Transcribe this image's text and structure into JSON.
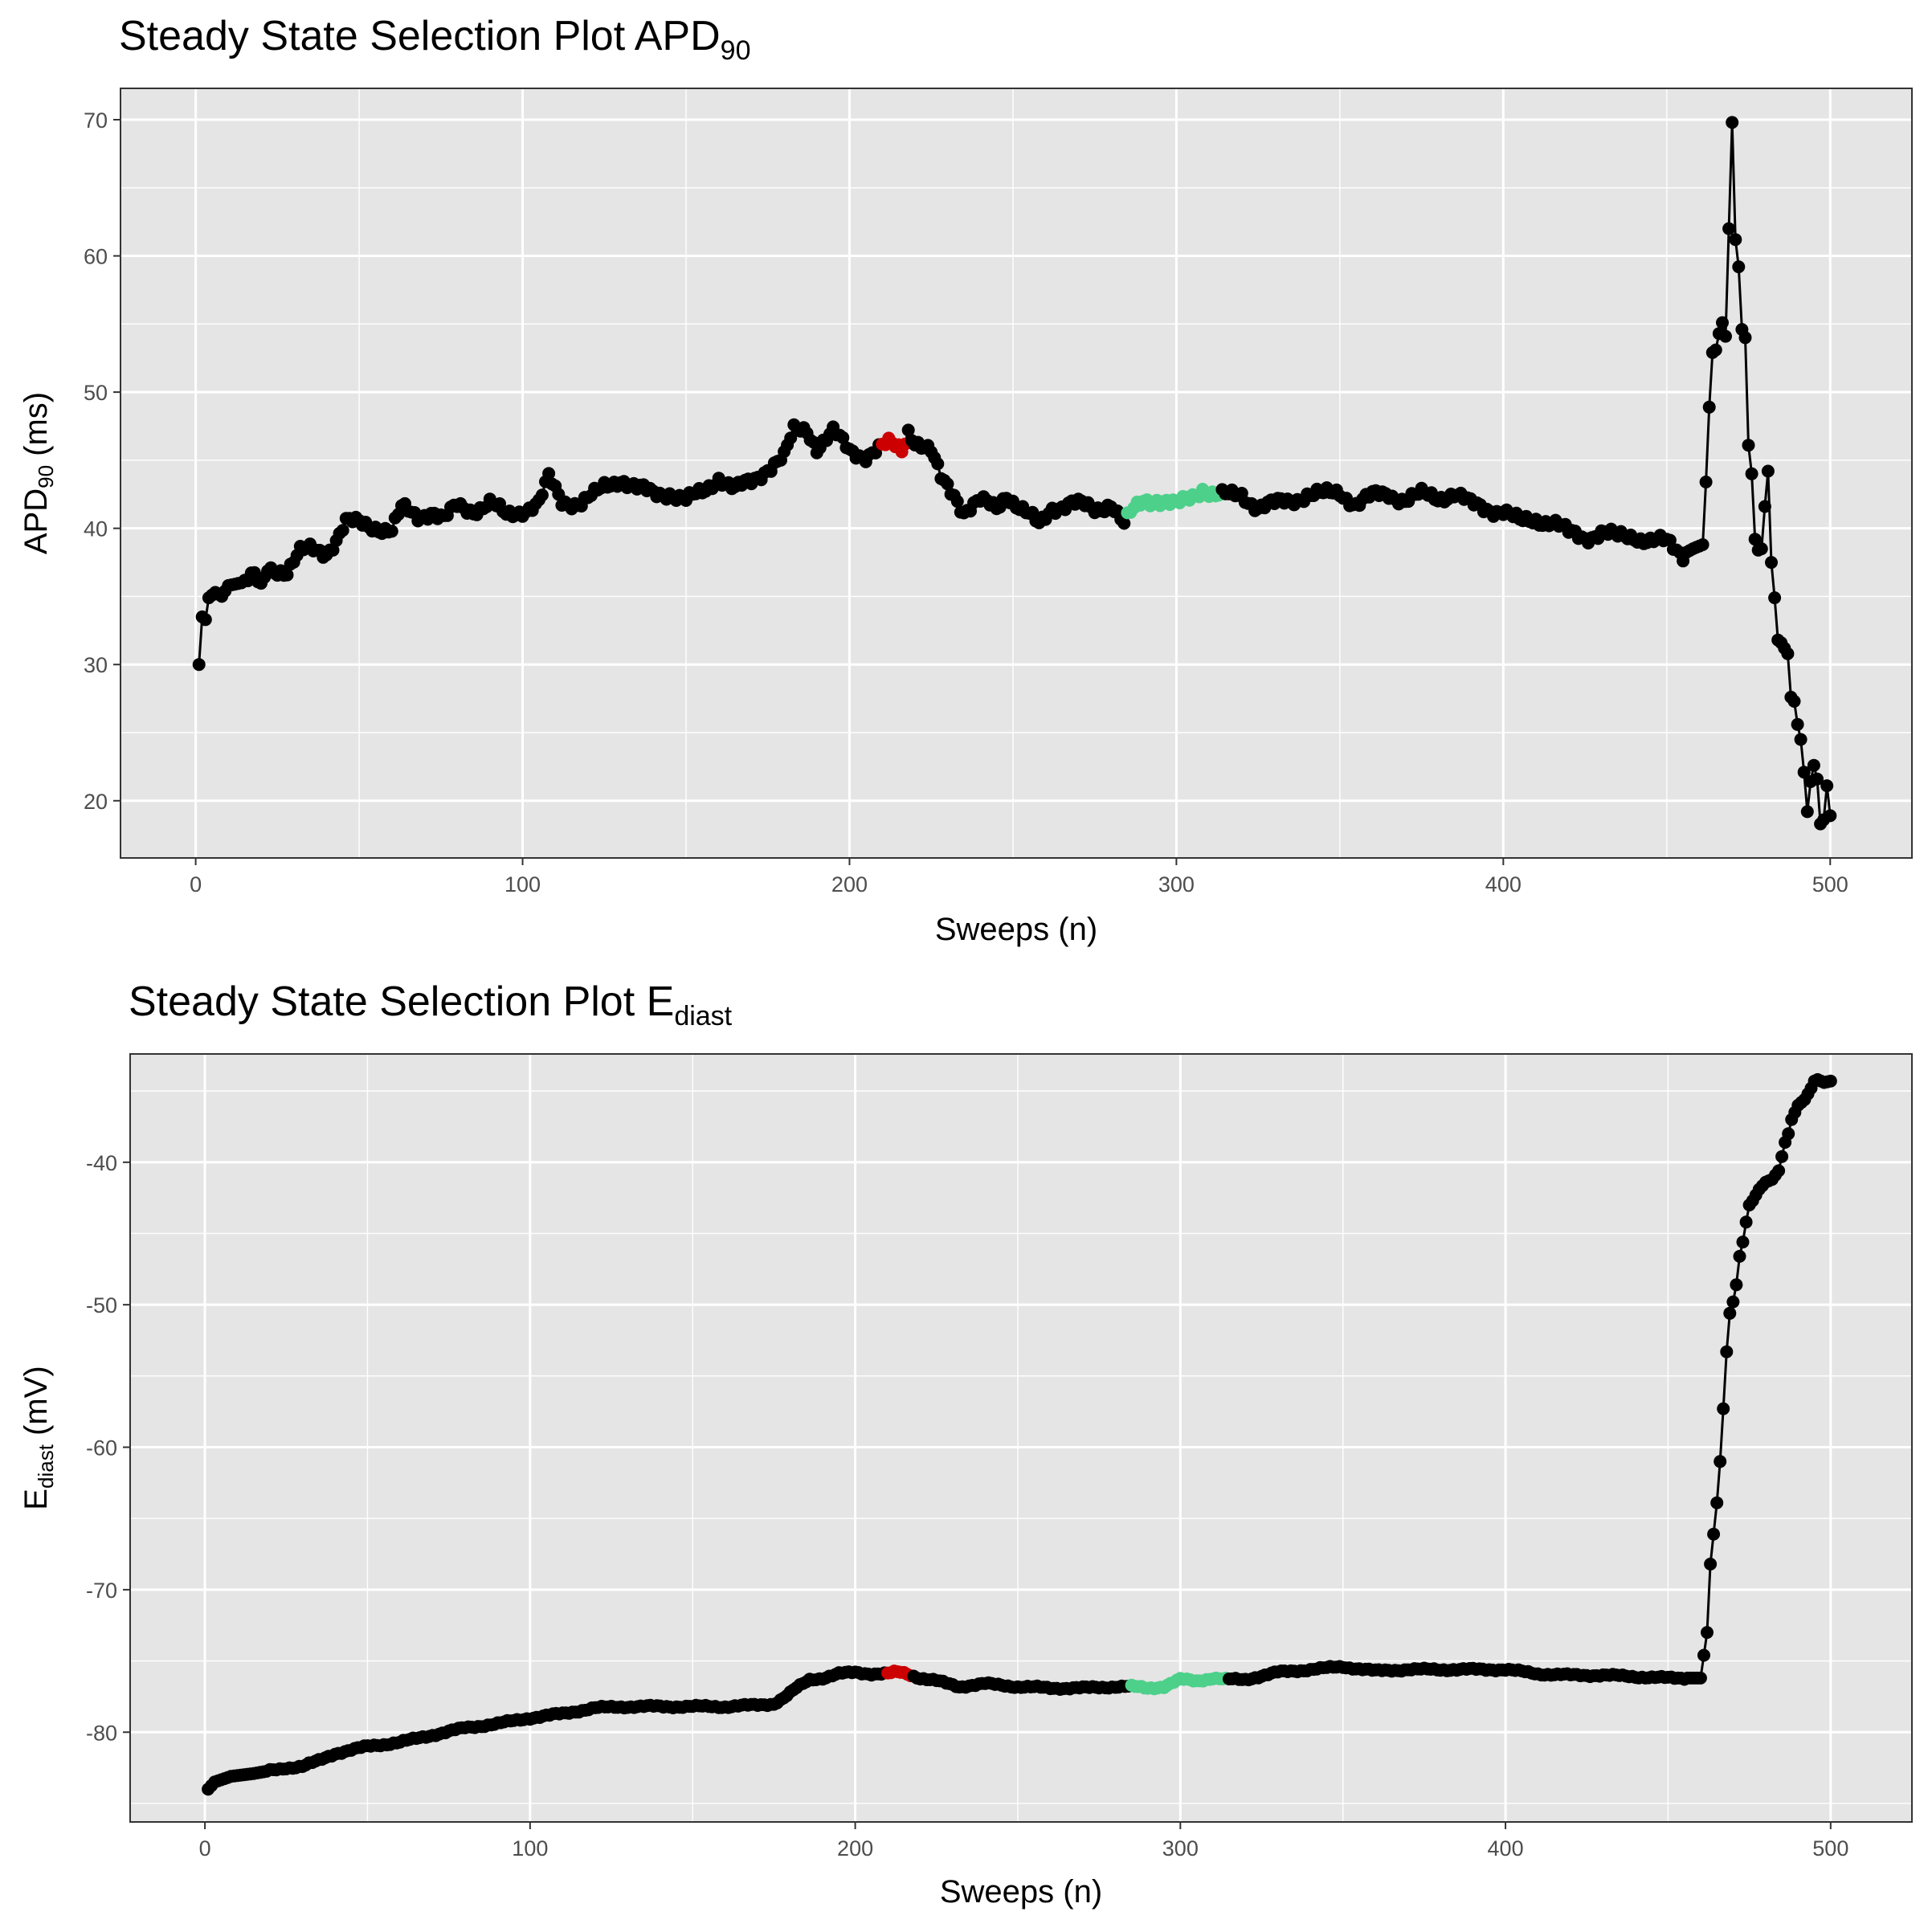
{
  "colors": {
    "panel_background": "#e5e5e5",
    "line": "#000000",
    "point": "#000000",
    "highlight_red": "#cc0000",
    "highlight_green": "#4dd08a",
    "tick_text": "#4d4d4d"
  },
  "chart_data": [
    {
      "type": "line",
      "markers": true,
      "title": "Steady State Selection Plot APD",
      "title_subscript": "90",
      "xlabel": "Sweeps (n)",
      "ylabel": "APD",
      "ylabel_subscript": "90",
      "ylabel_suffix": " (ms)",
      "xlim": [
        -23,
        525
      ],
      "ylim": [
        15.8,
        72.3
      ],
      "xticks": [
        0,
        100,
        200,
        300,
        400,
        500
      ],
      "yticks": [
        20,
        30,
        40,
        50,
        60,
        70
      ],
      "grid": true,
      "legend": "none",
      "x_range": [
        1,
        500
      ],
      "anchors": [
        [
          1,
          30
        ],
        [
          2,
          33.5
        ],
        [
          3,
          33.3
        ],
        [
          4,
          34.9
        ],
        [
          6,
          35.3
        ],
        [
          8,
          35
        ],
        [
          10,
          35.8
        ],
        [
          14,
          36
        ],
        [
          18,
          36.4
        ],
        [
          20,
          35.5
        ],
        [
          22,
          37
        ],
        [
          26,
          37
        ],
        [
          28,
          36.9
        ],
        [
          30,
          37.6
        ],
        [
          32,
          38.2
        ],
        [
          35,
          38.4
        ],
        [
          40,
          38.3
        ],
        [
          43,
          39.2
        ],
        [
          46,
          40.4
        ],
        [
          55,
          40.2
        ],
        [
          60,
          39.8
        ],
        [
          63,
          41.4
        ],
        [
          68,
          40.9
        ],
        [
          72,
          41.3
        ],
        [
          76,
          40.6
        ],
        [
          80,
          41.6
        ],
        [
          85,
          41.4
        ],
        [
          90,
          41.8
        ],
        [
          95,
          40.9
        ],
        [
          100,
          41.4
        ],
        [
          105,
          41.8
        ],
        [
          108,
          43.6
        ],
        [
          112,
          42
        ],
        [
          118,
          41.9
        ],
        [
          122,
          42.4
        ],
        [
          125,
          43
        ],
        [
          130,
          43.7
        ],
        [
          135,
          42.9
        ],
        [
          140,
          42.5
        ],
        [
          145,
          42.7
        ],
        [
          150,
          42
        ],
        [
          155,
          42.6
        ],
        [
          160,
          43.8
        ],
        [
          165,
          42.8
        ],
        [
          170,
          43.4
        ],
        [
          175,
          44.5
        ],
        [
          180,
          45.2
        ],
        [
          183,
          47.1
        ],
        [
          187,
          47.3
        ],
        [
          190,
          46
        ],
        [
          195,
          47
        ],
        [
          200,
          45.7
        ],
        [
          205,
          45.4
        ],
        [
          210,
          45.9
        ],
        [
          212,
          46.1
        ],
        [
          214,
          46
        ],
        [
          216,
          45.8
        ],
        [
          218,
          47.3
        ],
        [
          220,
          46.5
        ],
        [
          225,
          45.5
        ],
        [
          228,
          43.6
        ],
        [
          232,
          42.6
        ],
        [
          235,
          41.3
        ],
        [
          240,
          41.9
        ],
        [
          245,
          41.5
        ],
        [
          248,
          42.6
        ],
        [
          252,
          41.5
        ],
        [
          258,
          40.2
        ],
        [
          262,
          41.6
        ],
        [
          268,
          41.8
        ],
        [
          275,
          41.4
        ],
        [
          280,
          41.9
        ],
        [
          284,
          40.2
        ],
        [
          286,
          41
        ],
        [
          290,
          42.1
        ],
        [
          294,
          42.2
        ],
        [
          297,
          41.9
        ],
        [
          300,
          41.6
        ],
        [
          305,
          42.4
        ],
        [
          308,
          43
        ],
        [
          312,
          42.4
        ],
        [
          316,
          42.3
        ],
        [
          320,
          42.5
        ],
        [
          325,
          41.6
        ],
        [
          330,
          41.7
        ],
        [
          340,
          42.5
        ],
        [
          345,
          42.4
        ],
        [
          350,
          42.7
        ],
        [
          355,
          41.8
        ],
        [
          360,
          42.3
        ],
        [
          365,
          42.6
        ],
        [
          370,
          42.1
        ],
        [
          375,
          42.4
        ],
        [
          380,
          42.3
        ],
        [
          385,
          42.6
        ],
        [
          390,
          41.7
        ],
        [
          395,
          41.5
        ],
        [
          400,
          41.3
        ],
        [
          405,
          40.4
        ],
        [
          410,
          40.7
        ],
        [
          415,
          40.5
        ],
        [
          420,
          39.6
        ],
        [
          425,
          39.4
        ],
        [
          430,
          39.7
        ],
        [
          435,
          39.3
        ],
        [
          440,
          39.5
        ],
        [
          445,
          39.1
        ],
        [
          450,
          38.9
        ],
        [
          455,
          38.1
        ],
        [
          458,
          38.5
        ],
        [
          461,
          38.8
        ],
        [
          462,
          43.4
        ],
        [
          463,
          48.9
        ],
        [
          464,
          52.9
        ],
        [
          465,
          53.1
        ],
        [
          466,
          54.3
        ],
        [
          467,
          55.1
        ],
        [
          468,
          54.1
        ],
        [
          469,
          62
        ],
        [
          470,
          69.8
        ],
        [
          471,
          61.2
        ],
        [
          472,
          59.2
        ],
        [
          473,
          54.6
        ],
        [
          474,
          54
        ],
        [
          475,
          46.1
        ],
        [
          476,
          44
        ],
        [
          477,
          39.2
        ],
        [
          478,
          38.4
        ],
        [
          479,
          38.5
        ],
        [
          480,
          41.6
        ],
        [
          481,
          44.2
        ],
        [
          482,
          37.5
        ],
        [
          483,
          34.9
        ],
        [
          484,
          31.8
        ],
        [
          485,
          31.6
        ],
        [
          486,
          31.2
        ],
        [
          487,
          30.8
        ],
        [
          488,
          27.6
        ],
        [
          489,
          27.3
        ],
        [
          490,
          25.6
        ],
        [
          491,
          24.5
        ],
        [
          492,
          22.1
        ],
        [
          493,
          19.2
        ],
        [
          494,
          21.4
        ],
        [
          495,
          22.6
        ],
        [
          496,
          21.6
        ],
        [
          497,
          18.3
        ],
        [
          498,
          18.6
        ],
        [
          499,
          21.1
        ],
        [
          500,
          18.9
        ]
      ],
      "noise": 0.55,
      "noise_range": [
        15,
        455
      ],
      "highlight_red": [
        210,
        217
      ],
      "highlight_green": [
        285,
        313
      ]
    },
    {
      "type": "line",
      "markers": true,
      "title": "Steady State Selection Plot E",
      "title_subscript": "diast",
      "xlabel": "Sweeps (n)",
      "ylabel": "E",
      "ylabel_subscript": "diast",
      "ylabel_suffix": " (mV)",
      "xlim": [
        -23,
        525
      ],
      "ylim": [
        -86.3,
        -32.4
      ],
      "xticks": [
        0,
        100,
        200,
        300,
        400,
        500
      ],
      "yticks": [
        -80,
        -70,
        -60,
        -50,
        -40
      ],
      "yticklabels": [
        "-80",
        "-70",
        "-60",
        "-50",
        "-40"
      ],
      "grid": true,
      "legend": "none",
      "x_range": [
        1,
        500
      ],
      "anchors": [
        [
          1,
          -84
        ],
        [
          3,
          -83.5
        ],
        [
          8,
          -83.1
        ],
        [
          15,
          -82.9
        ],
        [
          25,
          -82.5
        ],
        [
          30,
          -82.4
        ],
        [
          35,
          -82
        ],
        [
          40,
          -81.5
        ],
        [
          50,
          -81
        ],
        [
          60,
          -80.7
        ],
        [
          70,
          -80.2
        ],
        [
          80,
          -79.7
        ],
        [
          90,
          -79.4
        ],
        [
          100,
          -79
        ],
        [
          110,
          -78.7
        ],
        [
          120,
          -78.3
        ],
        [
          130,
          -78.2
        ],
        [
          140,
          -78.2
        ],
        [
          150,
          -78.2
        ],
        [
          160,
          -78.2
        ],
        [
          170,
          -78.1
        ],
        [
          175,
          -78
        ],
        [
          178,
          -77.6
        ],
        [
          182,
          -76.9
        ],
        [
          186,
          -76.3
        ],
        [
          190,
          -76.2
        ],
        [
          195,
          -75.9
        ],
        [
          200,
          -75.8
        ],
        [
          205,
          -75.9
        ],
        [
          210,
          -75.9
        ],
        [
          212,
          -75.8
        ],
        [
          214,
          -75.8
        ],
        [
          216,
          -75.9
        ],
        [
          220,
          -76.2
        ],
        [
          225,
          -76.4
        ],
        [
          232,
          -76.8
        ],
        [
          240,
          -76.6
        ],
        [
          250,
          -76.8
        ],
        [
          260,
          -76.9
        ],
        [
          270,
          -76.9
        ],
        [
          280,
          -76.8
        ],
        [
          285,
          -76.8
        ],
        [
          290,
          -76.9
        ],
        [
          295,
          -76.8
        ],
        [
          300,
          -76.3
        ],
        [
          305,
          -76.4
        ],
        [
          310,
          -76.2
        ],
        [
          314,
          -76.3
        ],
        [
          320,
          -76.3
        ],
        [
          330,
          -75.8
        ],
        [
          340,
          -75.6
        ],
        [
          350,
          -75.4
        ],
        [
          360,
          -75.7
        ],
        [
          370,
          -75.6
        ],
        [
          380,
          -75.6
        ],
        [
          390,
          -75.6
        ],
        [
          400,
          -75.6
        ],
        [
          410,
          -75.9
        ],
        [
          420,
          -76
        ],
        [
          430,
          -76
        ],
        [
          440,
          -76.1
        ],
        [
          450,
          -76.2
        ],
        [
          455,
          -76.2
        ],
        [
          460,
          -76.2
        ],
        [
          462,
          -73
        ],
        [
          463,
          -68.2
        ],
        [
          464,
          -66.1
        ],
        [
          465,
          -63.9
        ],
        [
          466,
          -61
        ],
        [
          467,
          -57.3
        ],
        [
          468,
          -53.3
        ],
        [
          469,
          -50.6
        ],
        [
          470,
          -49.8
        ],
        [
          471,
          -48.6
        ],
        [
          472,
          -46.6
        ],
        [
          473,
          -45.6
        ],
        [
          474,
          -44.2
        ],
        [
          475,
          -43
        ],
        [
          476,
          -42.7
        ],
        [
          478,
          -41.9
        ],
        [
          480,
          -41.4
        ],
        [
          482,
          -41.2
        ],
        [
          484,
          -40.6
        ],
        [
          485,
          -39.6
        ],
        [
          486,
          -38.6
        ],
        [
          487,
          -38
        ],
        [
          488,
          -37
        ],
        [
          490,
          -36
        ],
        [
          492,
          -35.6
        ],
        [
          494,
          -34.8
        ],
        [
          495,
          -34.3
        ],
        [
          496,
          -34.2
        ],
        [
          498,
          -34.4
        ],
        [
          500,
          -34.3
        ]
      ],
      "noise": 0.1,
      "noise_range": [
        20,
        455
      ],
      "highlight_red": [
        210,
        217
      ],
      "highlight_green": [
        285,
        314
      ]
    }
  ]
}
